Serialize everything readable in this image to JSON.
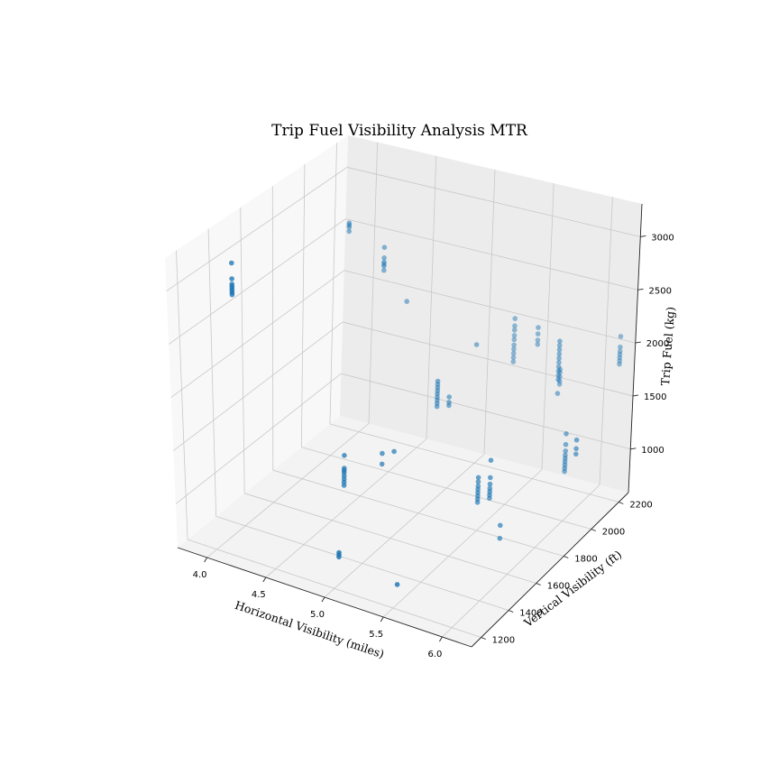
{
  "chart_data": {
    "type": "scatter",
    "projection": "3d",
    "title": "Trip Fuel Visibility Analysis MTR",
    "xlabel": "Horizontal Visibility (miles)",
    "ylabel": "Vertical Visibility (ft)",
    "zlabel": "Trip Fuel (kg)",
    "x_ticks": [
      4.0,
      4.5,
      5.0,
      5.5,
      6.0
    ],
    "x_tick_labels": [
      "4.0",
      "4.5",
      "5.0",
      "5.5",
      "6.0"
    ],
    "y_ticks": [
      1200,
      1400,
      1600,
      1800,
      2000,
      2200
    ],
    "y_tick_labels": [
      "1200",
      "1400",
      "1600",
      "1800",
      "2000",
      "2200"
    ],
    "z_ticks": [
      1000,
      1500,
      2000,
      2500,
      3000
    ],
    "z_tick_labels": [
      "1000",
      "1500",
      "2000",
      "2500",
      "3000"
    ],
    "xlim": [
      3.75,
      6.25
    ],
    "ylim": [
      1130,
      2270
    ],
    "zlim": [
      590,
      3310
    ],
    "grid": true,
    "marker_color": "#1f77b4",
    "points": [
      [
        3.8,
        1500,
        2900
      ],
      [
        3.8,
        1500,
        2750
      ],
      [
        3.8,
        1500,
        2700
      ],
      [
        3.8,
        1500,
        2680
      ],
      [
        3.8,
        1500,
        2660
      ],
      [
        3.8,
        1500,
        2640
      ],
      [
        3.8,
        1500,
        2620
      ],
      [
        3.8,
        1500,
        2600
      ],
      [
        4.0,
        2100,
        2710
      ],
      [
        4.0,
        2100,
        2690
      ],
      [
        4.0,
        2100,
        2670
      ],
      [
        4.0,
        2100,
        2630
      ],
      [
        4.3,
        2100,
        2560
      ],
      [
        4.3,
        2100,
        2460
      ],
      [
        4.3,
        2100,
        2420
      ],
      [
        4.3,
        2100,
        2400
      ],
      [
        4.3,
        2100,
        2380
      ],
      [
        4.3,
        2100,
        2340
      ],
      [
        4.5,
        2100,
        2100
      ],
      [
        4.6,
        1600,
        1230
      ],
      [
        4.6,
        1600,
        1110
      ],
      [
        4.6,
        1600,
        1090
      ],
      [
        4.6,
        1600,
        1070
      ],
      [
        4.6,
        1600,
        1040
      ],
      [
        4.6,
        1600,
        1010
      ],
      [
        4.6,
        1600,
        980
      ],
      [
        4.6,
        1600,
        950
      ],
      [
        4.8,
        1400,
        620
      ],
      [
        4.8,
        1400,
        600
      ],
      [
        4.8,
        1400,
        580
      ],
      [
        4.8,
        1700,
        1200
      ],
      [
        4.8,
        1700,
        1100
      ],
      [
        4.9,
        1700,
        1250
      ],
      [
        4.9,
        2000,
        1570
      ],
      [
        4.9,
        2000,
        1540
      ],
      [
        4.9,
        2000,
        1510
      ],
      [
        4.9,
        2000,
        1480
      ],
      [
        4.9,
        2000,
        1450
      ],
      [
        4.9,
        2000,
        1420
      ],
      [
        4.9,
        2000,
        1390
      ],
      [
        4.9,
        2000,
        1360
      ],
      [
        4.9,
        2000,
        1330
      ],
      [
        5.0,
        2000,
        1450
      ],
      [
        5.0,
        2000,
        1400
      ],
      [
        5.0,
        2000,
        1370
      ],
      [
        5.1,
        2100,
        1860
      ],
      [
        5.3,
        1400,
        500
      ],
      [
        5.3,
        2200,
        2050
      ],
      [
        5.3,
        2200,
        1980
      ],
      [
        5.3,
        2200,
        1940
      ],
      [
        5.3,
        2200,
        1890
      ],
      [
        5.3,
        2200,
        1850
      ],
      [
        5.3,
        2200,
        1800
      ],
      [
        5.3,
        2200,
        1760
      ],
      [
        5.3,
        2200,
        1720
      ],
      [
        5.3,
        2200,
        1680
      ],
      [
        5.3,
        2200,
        1640
      ],
      [
        5.5,
        1800,
        1080
      ],
      [
        5.5,
        1800,
        1040
      ],
      [
        5.5,
        1800,
        1000
      ],
      [
        5.5,
        1800,
        970
      ],
      [
        5.5,
        1800,
        940
      ],
      [
        5.5,
        1800,
        910
      ],
      [
        5.5,
        1800,
        880
      ],
      [
        5.5,
        1800,
        850
      ],
      [
        5.5,
        2200,
        2020
      ],
      [
        5.5,
        2200,
        1960
      ],
      [
        5.5,
        2200,
        1900
      ],
      [
        5.5,
        2200,
        1860
      ],
      [
        5.6,
        1800,
        1270
      ],
      [
        5.6,
        1800,
        1110
      ],
      [
        5.6,
        1800,
        1050
      ],
      [
        5.6,
        1800,
        1010
      ],
      [
        5.6,
        1800,
        980
      ],
      [
        5.6,
        1800,
        950
      ],
      [
        5.6,
        1800,
        920
      ],
      [
        5.7,
        1800,
        700
      ],
      [
        5.7,
        1800,
        580
      ],
      [
        5.7,
        2200,
        1680
      ],
      [
        5.7,
        2200,
        1650
      ],
      [
        5.7,
        2200,
        1610
      ],
      [
        5.7,
        2200,
        1570
      ],
      [
        5.7,
        2200,
        1540
      ],
      [
        5.8,
        2100,
        2090
      ],
      [
        5.8,
        2100,
        2050
      ],
      [
        5.8,
        2100,
        2010
      ],
      [
        5.8,
        2100,
        1970
      ],
      [
        5.8,
        2100,
        1930
      ],
      [
        5.8,
        2100,
        1890
      ],
      [
        5.8,
        2100,
        1850
      ],
      [
        5.8,
        2100,
        1810
      ],
      [
        5.8,
        2100,
        1770
      ],
      [
        5.8,
        2100,
        1730
      ],
      [
        5.8,
        2100,
        1600
      ],
      [
        6.0,
        2000,
        1400
      ],
      [
        6.0,
        2000,
        1300
      ],
      [
        6.0,
        2000,
        1240
      ],
      [
        6.0,
        2000,
        1200
      ],
      [
        6.0,
        2000,
        1170
      ],
      [
        6.0,
        2000,
        1140
      ],
      [
        6.0,
        2000,
        1110
      ],
      [
        6.0,
        2000,
        1080
      ],
      [
        6.0,
        2000,
        1050
      ],
      [
        6.2,
        2200,
        2130
      ],
      [
        6.2,
        2200,
        2030
      ],
      [
        6.2,
        2200,
        1990
      ],
      [
        6.2,
        2200,
        1960
      ],
      [
        6.2,
        2200,
        1930
      ],
      [
        6.2,
        2200,
        1900
      ],
      [
        6.2,
        2200,
        1870
      ],
      [
        6.2,
        1900,
        1520
      ],
      [
        6.2,
        1900,
        1440
      ],
      [
        6.2,
        1900,
        1390
      ]
    ]
  }
}
